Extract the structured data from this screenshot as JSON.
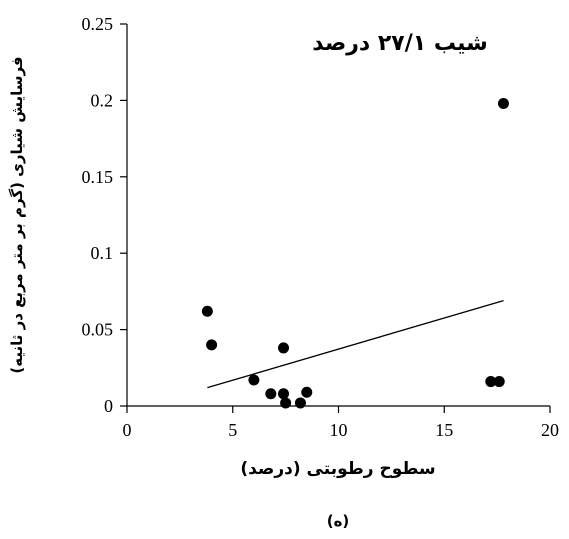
{
  "chart_data": {
    "type": "scatter",
    "title": "شیب ۲۷/۱ درصد",
    "xlabel": "سطوح رطوبتی (درصد)",
    "ylabel": "فرسایش شیاری (گرم بر متر مربع در ثانیه)",
    "panel_label": "(ه)",
    "xlim": [
      0,
      20
    ],
    "ylim": [
      0,
      0.25
    ],
    "x_ticks": [
      0,
      5,
      10,
      15,
      20
    ],
    "x_tick_labels": [
      "0",
      "5",
      "10",
      "15",
      "20"
    ],
    "y_ticks": [
      0,
      0.05,
      0.1,
      0.15,
      0.2,
      0.25
    ],
    "y_tick_labels": [
      "0",
      "0.05",
      "0.1",
      "0.15",
      "0.2",
      "0.25"
    ],
    "grid": false,
    "points": [
      {
        "x": 3.8,
        "y": 0.062
      },
      {
        "x": 4.0,
        "y": 0.04
      },
      {
        "x": 6.0,
        "y": 0.017
      },
      {
        "x": 6.8,
        "y": 0.008
      },
      {
        "x": 7.4,
        "y": 0.038
      },
      {
        "x": 7.4,
        "y": 0.008
      },
      {
        "x": 7.5,
        "y": 0.002
      },
      {
        "x": 8.2,
        "y": 0.002
      },
      {
        "x": 8.5,
        "y": 0.009
      },
      {
        "x": 17.2,
        "y": 0.016
      },
      {
        "x": 17.6,
        "y": 0.016
      },
      {
        "x": 17.8,
        "y": 0.198
      }
    ],
    "trendline": {
      "x": [
        3.8,
        17.8
      ],
      "y": [
        0.012,
        0.069
      ]
    },
    "marker_color": "#000000",
    "line_color": "#000000"
  }
}
